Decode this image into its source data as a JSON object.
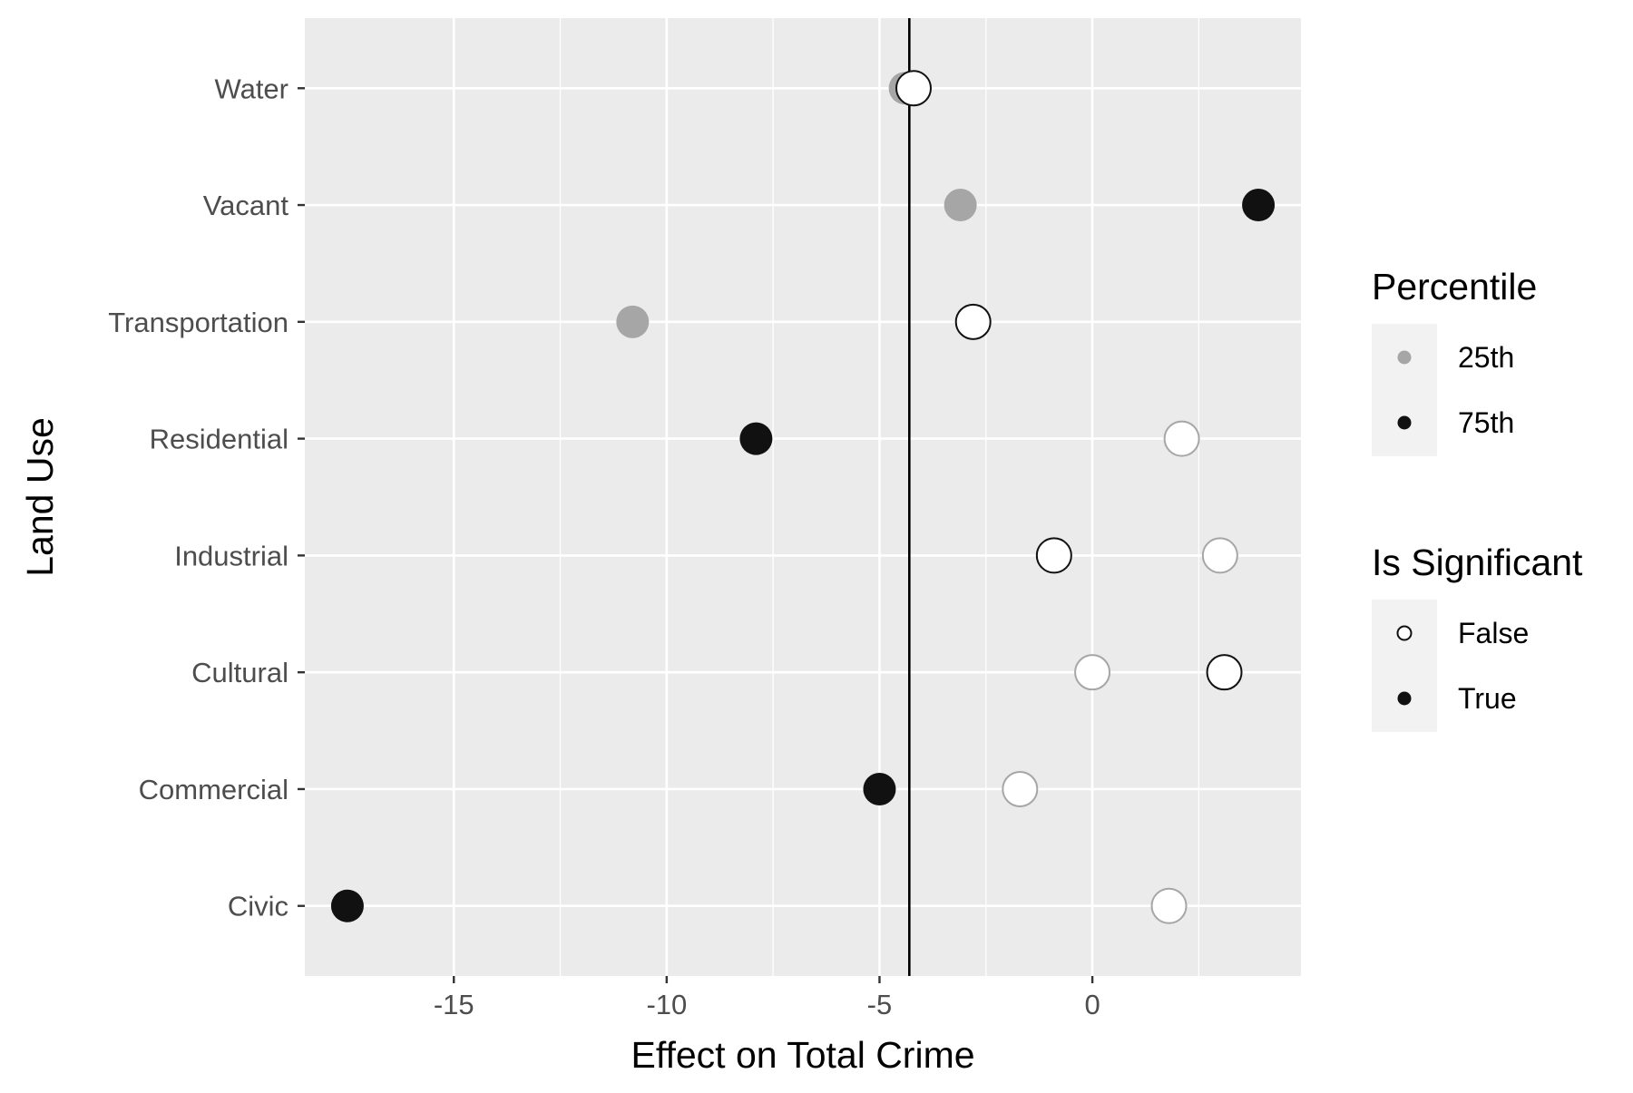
{
  "chart_data": {
    "type": "scatter",
    "title": "",
    "xlabel": "Effect on Total Crime",
    "ylabel": "Land Use",
    "xlim": [
      -18.5,
      4.9
    ],
    "x_ticks": [
      -15,
      -10,
      -5,
      0
    ],
    "x_tick_labels": [
      "-15",
      "-10",
      "-5",
      "0"
    ],
    "categories": [
      "Civic",
      "Commercial",
      "Cultural",
      "Industrial",
      "Residential",
      "Transportation",
      "Vacant",
      "Water"
    ],
    "reference_line": {
      "x": -4.3
    },
    "grid": true,
    "legend_placement": "right",
    "colors": {
      "25th": "#a6a6a6",
      "75th": "#111111",
      "panel": "#ebebeb",
      "grid": "#ffffff"
    },
    "series": [
      {
        "name": "25th",
        "points": [
          {
            "category": "Civic",
            "x": 1.8,
            "significant": false
          },
          {
            "category": "Commercial",
            "x": -1.7,
            "significant": false
          },
          {
            "category": "Cultural",
            "x": 0.0,
            "significant": false
          },
          {
            "category": "Industrial",
            "x": 3.0,
            "significant": false
          },
          {
            "category": "Residential",
            "x": 2.1,
            "significant": false
          },
          {
            "category": "Transportation",
            "x": -10.8,
            "significant": true
          },
          {
            "category": "Vacant",
            "x": -3.1,
            "significant": true
          },
          {
            "category": "Water",
            "x": -4.4,
            "significant": true
          }
        ]
      },
      {
        "name": "75th",
        "points": [
          {
            "category": "Civic",
            "x": -17.5,
            "significant": true
          },
          {
            "category": "Commercial",
            "x": -5.0,
            "significant": true
          },
          {
            "category": "Cultural",
            "x": 3.1,
            "significant": false
          },
          {
            "category": "Industrial",
            "x": -0.9,
            "significant": false
          },
          {
            "category": "Residential",
            "x": -7.9,
            "significant": true
          },
          {
            "category": "Transportation",
            "x": -2.8,
            "significant": false
          },
          {
            "category": "Vacant",
            "x": 3.9,
            "significant": true
          },
          {
            "category": "Water",
            "x": -4.2,
            "significant": false
          }
        ]
      }
    ],
    "legends": [
      {
        "title": "Percentile",
        "entries": [
          {
            "label": "25th",
            "color": "#a6a6a6",
            "filled": true
          },
          {
            "label": "75th",
            "color": "#111111",
            "filled": true
          }
        ]
      },
      {
        "title": "Is Significant",
        "entries": [
          {
            "label": "False",
            "color": "#111111",
            "filled": false
          },
          {
            "label": "True",
            "color": "#111111",
            "filled": true
          }
        ]
      }
    ]
  }
}
